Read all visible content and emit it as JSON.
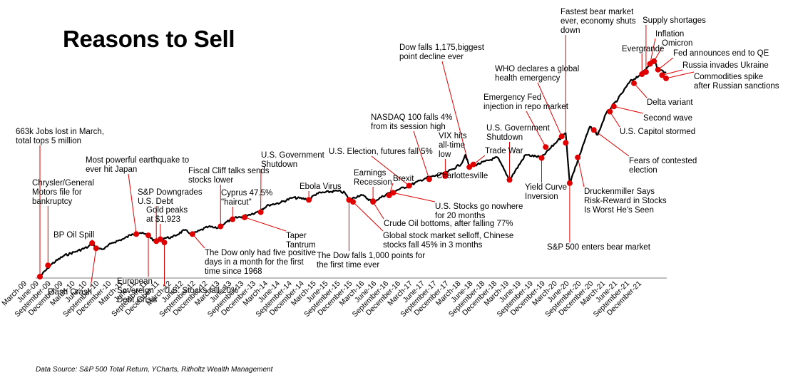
{
  "title": "Reasons to Sell",
  "source": "Data Source: S&P 500 Total Return, YCharts, Ritholtz Wealth Management",
  "colors": {
    "line": "#000000",
    "marker": "#e00000",
    "leader": "#e00000",
    "axis": "#7f7f7f"
  },
  "chart_data": {
    "type": "line",
    "title": "Reasons to Sell",
    "series": [
      {
        "name": "",
        "points": [
          [
            "2009-03",
            100
          ],
          [
            "2009-06",
            140
          ],
          [
            "2009-09",
            165
          ],
          [
            "2009-12",
            178
          ],
          [
            "2010-03",
            192
          ],
          [
            "2010-04",
            204
          ],
          [
            "2010-05",
            188
          ],
          [
            "2010-07",
            186
          ],
          [
            "2010-09",
            205
          ],
          [
            "2010-12",
            218
          ],
          [
            "2011-02",
            232
          ],
          [
            "2011-04",
            236
          ],
          [
            "2011-06",
            228
          ],
          [
            "2011-08",
            205
          ],
          [
            "2011-10",
            220
          ],
          [
            "2011-12",
            222
          ],
          [
            "2012-03",
            244
          ],
          [
            "2012-05",
            232
          ],
          [
            "2012-09",
            255
          ],
          [
            "2012-11",
            250
          ],
          [
            "2013-03",
            280
          ],
          [
            "2013-06",
            288
          ],
          [
            "2013-09",
            300
          ],
          [
            "2013-12",
            322
          ],
          [
            "2014-03",
            330
          ],
          [
            "2014-06",
            345
          ],
          [
            "2014-10",
            340
          ],
          [
            "2014-12",
            358
          ],
          [
            "2015-05",
            366
          ],
          [
            "2015-07",
            360
          ],
          [
            "2015-08",
            338
          ],
          [
            "2015-11",
            354
          ],
          [
            "2016-02",
            332
          ],
          [
            "2016-06",
            360
          ],
          [
            "2016-11",
            382
          ],
          [
            "2017-03",
            405
          ],
          [
            "2017-08",
            420
          ],
          [
            "2017-12",
            450
          ],
          [
            "2018-01",
            478
          ],
          [
            "2018-02",
            440
          ],
          [
            "2018-09",
            470
          ],
          [
            "2018-12",
            400
          ],
          [
            "2019-04",
            478
          ],
          [
            "2019-08",
            470
          ],
          [
            "2019-12",
            522
          ],
          [
            "2020-02",
            545
          ],
          [
            "2020-03",
            390
          ],
          [
            "2020-06",
            495
          ],
          [
            "2020-08",
            565
          ],
          [
            "2020-10",
            540
          ],
          [
            "2020-12",
            605
          ],
          [
            "2021-03",
            650
          ],
          [
            "2021-06",
            705
          ],
          [
            "2021-09",
            730
          ],
          [
            "2021-12",
            775
          ],
          [
            "2022-01",
            742
          ],
          [
            "2022-03",
            735
          ]
        ]
      }
    ],
    "x_tick_labels": [
      "March-09",
      "June-09",
      "September-09",
      "December-09",
      "March-10",
      "June-10",
      "September-10",
      "December-10",
      "March-11",
      "June-11",
      "September-11",
      "December-11",
      "March-12",
      "June-12",
      "September-12",
      "December-12",
      "March-13",
      "June-13",
      "September-13",
      "December-13",
      "March-14",
      "June-14",
      "September-14",
      "December-14",
      "March-15",
      "June-15",
      "September-15",
      "December-15",
      "March-16",
      "June-16",
      "September-16",
      "December-16",
      "March-17",
      "June-17",
      "September-17",
      "December-17",
      "March-18",
      "June-18",
      "September-18",
      "December-18",
      "March-19",
      "June-19",
      "September-19",
      "December-19",
      "March-20",
      "June-20",
      "September-20",
      "December-20",
      "March-21",
      "June-21",
      "September-21",
      "December-21"
    ],
    "annotations": [
      {
        "date": "2009-03",
        "value": 100,
        "text": "663k Jobs lost in March,\ntotal tops 5 million"
      },
      {
        "date": "2009-05",
        "value": 135,
        "text": "Chrysler/General\nMotors file for\nbankruptcy"
      },
      {
        "date": "2010-05",
        "value": 188,
        "text": "Flash Crash"
      },
      {
        "date": "2010-04",
        "value": 204,
        "text": "BP Oil Spill"
      },
      {
        "date": "2011-03",
        "value": 232,
        "text": "Most powerful earthquake to\never hit Japan"
      },
      {
        "date": "2011-06",
        "value": 228,
        "text": "European\nSovereign\nDebt Crisis"
      },
      {
        "date": "2011-08",
        "value": 210,
        "text": "S&P Downgrades\nU.S. Debt"
      },
      {
        "date": "2011-09",
        "value": 216,
        "text": "Gold peaks\nat $1,923"
      },
      {
        "date": "2011-10",
        "value": 206,
        "text": "U.S. Stocks fall 20%"
      },
      {
        "date": "2012-05",
        "value": 232,
        "text": "The Dow only had five positive\ndays in a month for the first\ntime since 1968"
      },
      {
        "date": "2012-12",
        "value": 256,
        "text": "Fiscal Cliff talks sends\nstocks lower"
      },
      {
        "date": "2013-03",
        "value": 278,
        "text": "Cyprus 47.5%\n\"haircut\""
      },
      {
        "date": "2013-06",
        "value": 284,
        "text": "Taper\nTantrum"
      },
      {
        "date": "2013-10",
        "value": 300,
        "text": "U.S. Government\nShutdown"
      },
      {
        "date": "2014-10",
        "value": 338,
        "text": "Ebola Virus"
      },
      {
        "date": "2015-08",
        "value": 338,
        "text": "The Dow falls 1,000 points for\nthe first time ever"
      },
      {
        "date": "2015-09",
        "value": 332,
        "text": "Global stock market selloff, Chinese\nstocks fall 45% in 3 months"
      },
      {
        "date": "2016-02",
        "value": 334,
        "text": "Earnings\nRecession"
      },
      {
        "date": "2016-02",
        "value": 332,
        "text": "Crude Oil bottoms, after falling 77%"
      },
      {
        "date": "2016-06",
        "value": 352,
        "text": "Brexit"
      },
      {
        "date": "2016-07",
        "value": 360,
        "text": "U.S. Stocks go nowhere\nfor 20 months"
      },
      {
        "date": "2016-11",
        "value": 382,
        "text": "U.S. Election, futures fall 5%"
      },
      {
        "date": "2017-04",
        "value": 402,
        "text": "NASDAQ 100 falls 4%\nfrom its  session high"
      },
      {
        "date": "2017-08",
        "value": 412,
        "text": "Charlottesville"
      },
      {
        "date": "2017-08",
        "value": 418,
        "text": "VIX hits\nall-time\nlow"
      },
      {
        "date": "2018-02",
        "value": 440,
        "text": "Dow falls 1,175,biggest\npoint decline ever"
      },
      {
        "date": "2018-03",
        "value": 448,
        "text": "Trade War"
      },
      {
        "date": "2018-12",
        "value": 400,
        "text": "U.S. Government\nShutdown"
      },
      {
        "date": "2019-08",
        "value": 468,
        "text": "Yield Curve\nInversion"
      },
      {
        "date": "2019-09",
        "value": 502,
        "text": "Emergency Fed\ninjection in repo market"
      },
      {
        "date": "2020-01",
        "value": 535,
        "text": "WHO declares a global\nhealth emergency"
      },
      {
        "date": "2020-02",
        "value": 515,
        "text": "Fastest bear market\never, economy shuts\ndown"
      },
      {
        "date": "2020-03",
        "value": 390,
        "text": "S&P 500 enters bear market"
      },
      {
        "date": "2020-05",
        "value": 470,
        "text": "Druckenmiller Says\nRisk-Reward in Stocks\nIs Worst He's Seen"
      },
      {
        "date": "2020-09",
        "value": 555,
        "text": "Fears of contested\nelection"
      },
      {
        "date": "2021-01",
        "value": 612,
        "text": "U.S. Capitol stormed"
      },
      {
        "date": "2021-02",
        "value": 628,
        "text": "Second wave"
      },
      {
        "date": "2021-07",
        "value": 700,
        "text": "Delta variant"
      },
      {
        "date": "2021-09",
        "value": 728,
        "text": "Evergrande"
      },
      {
        "date": "2021-10",
        "value": 735,
        "text": "Supply shortages"
      },
      {
        "date": "2021-11",
        "value": 760,
        "text": "Inflation"
      },
      {
        "date": "2021-12",
        "value": 768,
        "text": "Omicron"
      },
      {
        "date": "2022-01",
        "value": 742,
        "text": "Fed announces end to QE"
      },
      {
        "date": "2022-02",
        "value": 725,
        "text": "Russia invades Ukraine"
      },
      {
        "date": "2022-03",
        "value": 715,
        "text": "Commodities spike\nafter Russian sanctions"
      }
    ]
  }
}
